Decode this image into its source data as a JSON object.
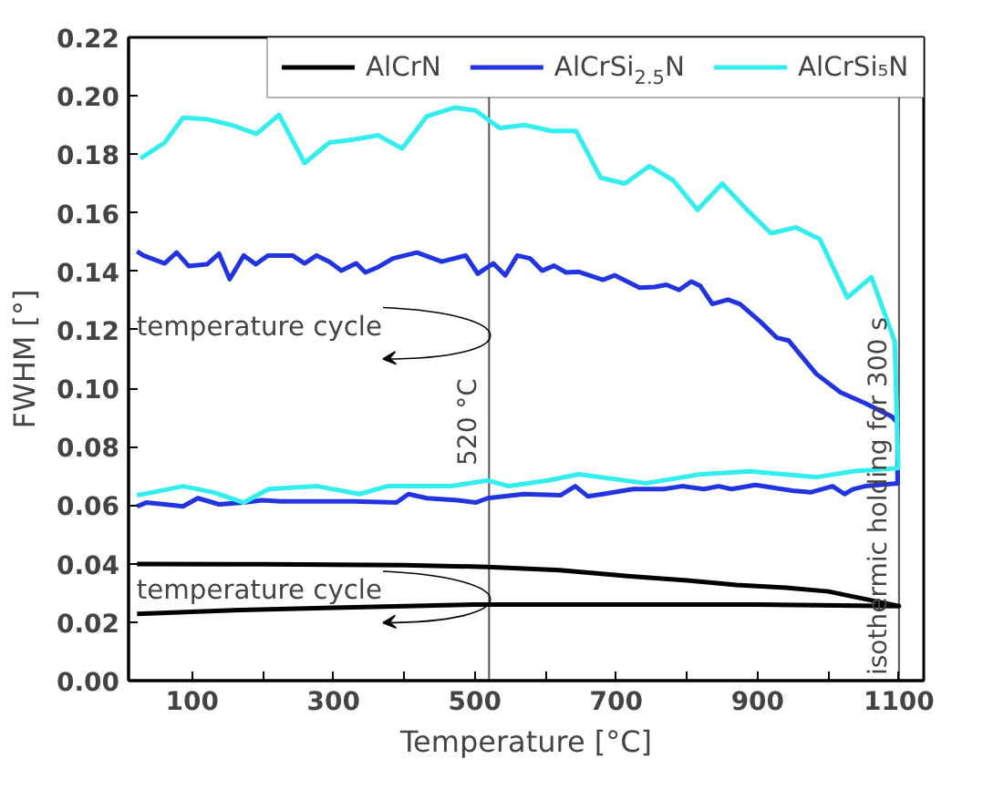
{
  "chart_data": {
    "type": "line",
    "xlabel": "Temperature [°C]",
    "ylabel": "FWHM [°]",
    "xlim": [
      10,
      1135
    ],
    "ylim": [
      0,
      0.22
    ],
    "xticks": [
      100,
      {
        "value": 200,
        "label": null
      },
      300,
      {
        "value": 400,
        "label": null
      },
      500,
      {
        "value": 600,
        "label": null
      },
      700,
      {
        "value": 800,
        "label": null
      },
      900,
      {
        "value": 1000,
        "label": null
      },
      1100
    ],
    "yticks": [
      {
        "value": 0,
        "label": "0.00"
      },
      0.02,
      0.04,
      0.06,
      0.08,
      {
        "value": 0.1,
        "label": "0.10"
      },
      0.12,
      0.14,
      0.16,
      0.18,
      {
        "value": 0.2,
        "label": "0.20"
      },
      0.22
    ],
    "grid": false,
    "legend": "top",
    "marker": "none",
    "line_style": "solid",
    "ref_lines": [
      {
        "axis": "x",
        "value": 520,
        "label": "520 °C"
      },
      {
        "axis": "x",
        "value": 1100,
        "label": "isothermic holding for 300 s"
      }
    ],
    "annotations": [
      "temperature cycle",
      "temperature cycle"
    ],
    "series": [
      {
        "name": "AlCrN",
        "color": "#000000",
        "x": [
          22,
          200,
          400,
          518,
          620,
          720,
          800,
          870,
          940,
          1000,
          1050,
          1100,
          1100,
          900,
          700,
          500,
          300,
          150,
          22
        ],
        "values": [
          0.0399,
          0.0398,
          0.0395,
          0.0389,
          0.0378,
          0.0357,
          0.0343,
          0.0327,
          0.0318,
          0.0305,
          0.028,
          0.0255,
          0.0255,
          0.026,
          0.026,
          0.026,
          0.0249,
          0.024,
          0.0228
        ]
      },
      {
        "name": "AlCrSi$_{2.5}$N",
        "color": "#2233e0",
        "x": [
          22,
          31,
          61,
          78,
          95,
          121,
          138,
          153,
          173,
          190,
          207,
          242,
          259,
          276,
          294,
          311,
          332,
          345,
          362,
          384,
          418,
          453,
          487,
          504,
          526,
          543,
          560,
          578,
          595,
          612,
          629,
          647,
          681,
          698,
          733,
          754,
          771,
          789,
          806,
          819,
          836,
          858,
          875,
          905,
          927,
          944,
          983,
          1017,
          1052,
          1090,
          1098,
          1098,
          1052,
          1035,
          1023,
          1006,
          975,
          949,
          897,
          863,
          845,
          824,
          793,
          767,
          724,
          681,
          660,
          642,
          621,
          569,
          518,
          501,
          475,
          432,
          406,
          389,
          328,
          277,
          225,
          199,
          173,
          138,
          108,
          87,
          61,
          35,
          22
        ],
        "values": [
          0.1468,
          0.1454,
          0.1427,
          0.1464,
          0.1418,
          0.1424,
          0.146,
          0.1373,
          0.1454,
          0.1424,
          0.1454,
          0.1454,
          0.1427,
          0.1454,
          0.1433,
          0.1402,
          0.1427,
          0.1396,
          0.1413,
          0.1444,
          0.1464,
          0.1433,
          0.1454,
          0.1392,
          0.1427,
          0.1386,
          0.1454,
          0.1444,
          0.1402,
          0.1419,
          0.1396,
          0.1398,
          0.1371,
          0.1386,
          0.1344,
          0.1346,
          0.1354,
          0.1336,
          0.1365,
          0.135,
          0.1288,
          0.1303,
          0.1288,
          0.1225,
          0.1173,
          0.1163,
          0.1049,
          0.0986,
          0.0949,
          0.0903,
          0.0882,
          0.0675,
          0.0665,
          0.0655,
          0.0638,
          0.0665,
          0.0644,
          0.065,
          0.0669,
          0.0655,
          0.0665,
          0.0655,
          0.0665,
          0.0655,
          0.0655,
          0.0638,
          0.063,
          0.0665,
          0.0634,
          0.0638,
          0.0624,
          0.0609,
          0.0617,
          0.0624,
          0.0638,
          0.0609,
          0.0613,
          0.0613,
          0.0613,
          0.0617,
          0.0609,
          0.0603,
          0.0624,
          0.0596,
          0.0603,
          0.0609,
          0.0596
        ]
      },
      {
        "name": "AlCrSi₅N",
        "color": "#33eeee",
        "x": [
          27,
          61,
          87,
          121,
          156,
          191,
          223,
          259,
          294,
          328,
          363,
          397,
          432,
          471,
          501,
          535,
          570,
          609,
          643,
          678,
          712,
          747,
          781,
          815,
          850,
          885,
          919,
          954,
          988,
          1027,
          1061,
          1094,
          1099,
          1035,
          984,
          889,
          820,
          742,
          647,
          604,
          548,
          518,
          466,
          415,
          376,
          337,
          277,
          208,
          173,
          130,
          87,
          44,
          22
        ],
        "values": [
          0.1786,
          0.184,
          0.1925,
          0.192,
          0.19,
          0.187,
          0.1935,
          0.177,
          0.184,
          0.185,
          0.1865,
          0.182,
          0.193,
          0.196,
          0.195,
          0.189,
          0.19,
          0.188,
          0.188,
          0.172,
          0.17,
          0.176,
          0.171,
          0.161,
          0.17,
          0.161,
          0.153,
          0.155,
          0.151,
          0.131,
          0.138,
          0.116,
          0.0727,
          0.0716,
          0.0696,
          0.0716,
          0.0706,
          0.0675,
          0.0706,
          0.0685,
          0.0665,
          0.0685,
          0.0665,
          0.0665,
          0.0665,
          0.0638,
          0.0665,
          0.0655,
          0.0609,
          0.0644,
          0.0665,
          0.0644,
          0.0634
        ]
      }
    ]
  }
}
